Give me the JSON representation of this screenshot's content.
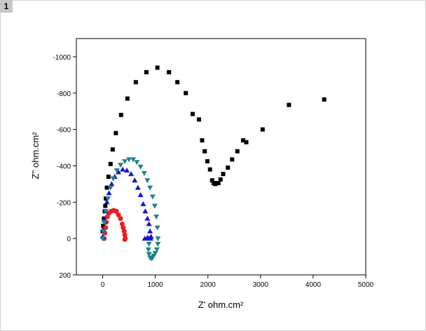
{
  "panel_label": "1",
  "chart_data": {
    "type": "scatter",
    "title": "",
    "xlabel": "Z' ohm.cm²",
    "ylabel": "Z'' ohm.cm²",
    "xlim": [
      -500,
      5000
    ],
    "ylim": [
      200,
      -1100
    ],
    "x_ticks": [
      0,
      1000,
      2000,
      3000,
      4000,
      5000
    ],
    "x_tick_labels": [
      "0",
      "1000",
      "2000",
      "3000",
      "4000",
      "5000"
    ],
    "y_ticks": [
      -1000,
      -800,
      -600,
      -400,
      -200,
      0,
      200
    ],
    "y_tick_labels": [
      "-1000",
      "-800",
      "-600",
      "-400",
      "-200",
      "0",
      "200"
    ],
    "grid": false,
    "legend": "none",
    "series": [
      {
        "marker": "square",
        "color": "#000000",
        "points": [
          [
            0,
            -40
          ],
          [
            10,
            -70
          ],
          [
            25,
            -110
          ],
          [
            40,
            -150
          ],
          [
            50,
            -180
          ],
          [
            60,
            -220
          ],
          [
            80,
            -280
          ],
          [
            110,
            -340
          ],
          [
            150,
            -410
          ],
          [
            190,
            -490
          ],
          [
            250,
            -580
          ],
          [
            350,
            -680
          ],
          [
            470,
            -770
          ],
          [
            630,
            -860
          ],
          [
            830,
            -915
          ],
          [
            1040,
            -940
          ],
          [
            1260,
            -915
          ],
          [
            1420,
            -860
          ],
          [
            1580,
            -800
          ],
          [
            1710,
            -685
          ],
          [
            1830,
            -655
          ],
          [
            1890,
            -540
          ],
          [
            1940,
            -480
          ],
          [
            1990,
            -425
          ],
          [
            2040,
            -380
          ],
          [
            2080,
            -320
          ],
          [
            2110,
            -305
          ],
          [
            2140,
            -300
          ],
          [
            2170,
            -305
          ],
          [
            2200,
            -305
          ],
          [
            2240,
            -325
          ],
          [
            2290,
            -355
          ],
          [
            2380,
            -390
          ],
          [
            2460,
            -435
          ],
          [
            2560,
            -480
          ],
          [
            2670,
            -540
          ],
          [
            2730,
            -530
          ],
          [
            3040,
            -600
          ],
          [
            3540,
            -735
          ],
          [
            4210,
            -765
          ]
        ]
      },
      {
        "marker": "circle",
        "color": "#ee1c1c",
        "points": [
          [
            30,
            0
          ],
          [
            40,
            -30
          ],
          [
            55,
            -60
          ],
          [
            70,
            -90
          ],
          [
            90,
            -120
          ],
          [
            120,
            -140
          ],
          [
            160,
            -150
          ],
          [
            210,
            -155
          ],
          [
            260,
            -150
          ],
          [
            300,
            -130
          ],
          [
            340,
            -110
          ],
          [
            370,
            -80
          ],
          [
            390,
            -60
          ],
          [
            410,
            -40
          ],
          [
            420,
            -20
          ],
          [
            430,
            0
          ],
          [
            420,
            5
          ]
        ]
      },
      {
        "marker": "triangle-up",
        "color": "#1515d2",
        "points": [
          [
            0,
            -10
          ],
          [
            10,
            -50
          ],
          [
            30,
            -100
          ],
          [
            50,
            -150
          ],
          [
            80,
            -200
          ],
          [
            120,
            -250
          ],
          [
            170,
            -300
          ],
          [
            230,
            -340
          ],
          [
            300,
            -365
          ],
          [
            380,
            -380
          ],
          [
            460,
            -375
          ],
          [
            540,
            -355
          ],
          [
            610,
            -320
          ],
          [
            670,
            -280
          ],
          [
            720,
            -240
          ],
          [
            770,
            -190
          ],
          [
            810,
            -150
          ],
          [
            850,
            -110
          ],
          [
            880,
            -80
          ],
          [
            900,
            -40
          ],
          [
            920,
            -10
          ],
          [
            910,
            0
          ],
          [
            880,
            0
          ],
          [
            850,
            -5
          ],
          [
            800,
            0
          ]
        ]
      },
      {
        "marker": "triangle-down",
        "color": "#1e8585",
        "points": [
          [
            0,
            0
          ],
          [
            10,
            -40
          ],
          [
            30,
            -90
          ],
          [
            60,
            -150
          ],
          [
            100,
            -220
          ],
          [
            150,
            -280
          ],
          [
            200,
            -330
          ],
          [
            270,
            -375
          ],
          [
            340,
            -405
          ],
          [
            420,
            -425
          ],
          [
            500,
            -435
          ],
          [
            580,
            -435
          ],
          [
            650,
            -420
          ],
          [
            720,
            -395
          ],
          [
            790,
            -360
          ],
          [
            850,
            -320
          ],
          [
            900,
            -280
          ],
          [
            950,
            -230
          ],
          [
            990,
            -180
          ],
          [
            1020,
            -120
          ],
          [
            1040,
            -60
          ],
          [
            1050,
            0
          ],
          [
            1050,
            30
          ],
          [
            1030,
            60
          ],
          [
            1000,
            80
          ],
          [
            970,
            95
          ],
          [
            950,
            105
          ],
          [
            930,
            110
          ],
          [
            900,
            105
          ],
          [
            880,
            85
          ],
          [
            870,
            60
          ],
          [
            880,
            30
          ]
        ]
      }
    ]
  }
}
